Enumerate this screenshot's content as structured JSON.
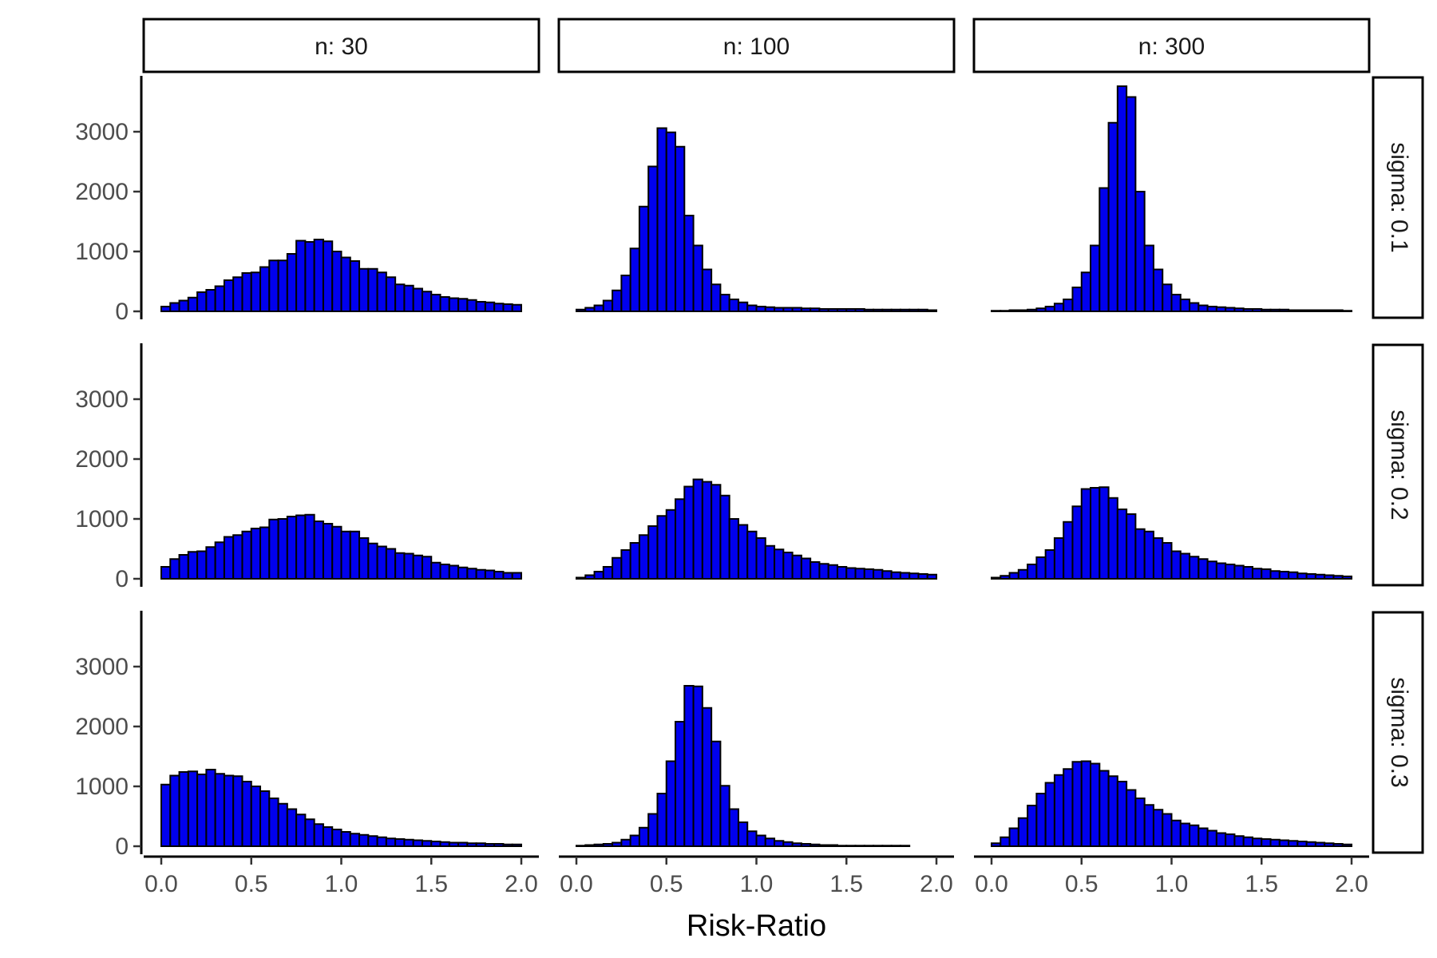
{
  "chart_data": {
    "type": "bar",
    "subtype": "faceted-histogram",
    "xlabel": "Risk-Ratio",
    "ylabel": "",
    "xlim": [
      0,
      2
    ],
    "ylim": [
      0,
      3800
    ],
    "x_ticks": [
      "0.0",
      "0.5",
      "1.0",
      "1.5",
      "2.0"
    ],
    "y_ticks": [
      "0",
      "1000",
      "2000",
      "3000"
    ],
    "bin_width": 0.05,
    "bin_starts": [
      0.0,
      0.05,
      0.1,
      0.15,
      0.2,
      0.25,
      0.3,
      0.35,
      0.4,
      0.45,
      0.5,
      0.55,
      0.6,
      0.65,
      0.7,
      0.75,
      0.8,
      0.85,
      0.9,
      0.95,
      1.0,
      1.05,
      1.1,
      1.15,
      1.2,
      1.25,
      1.3,
      1.35,
      1.4,
      1.45,
      1.5,
      1.55,
      1.6,
      1.65,
      1.7,
      1.75,
      1.8,
      1.85,
      1.9,
      1.95
    ],
    "columns": [
      "n: 30",
      "n: 100",
      "n: 300"
    ],
    "rows": [
      "sigma: 0.1",
      "sigma: 0.2",
      "sigma: 0.3"
    ],
    "colors": {
      "fill": "#0000EE",
      "outline": "#000000"
    },
    "grid": false,
    "legend": "none",
    "panels": [
      {
        "column": "n: 30",
        "row": "sigma: 0.1",
        "counts": [
          80,
          140,
          180,
          230,
          320,
          360,
          420,
          520,
          570,
          640,
          650,
          740,
          850,
          850,
          960,
          1180,
          1160,
          1200,
          1170,
          1000,
          900,
          840,
          710,
          710,
          650,
          570,
          450,
          430,
          380,
          330,
          280,
          240,
          220,
          210,
          190,
          160,
          150,
          130,
          120,
          110
        ]
      },
      {
        "column": "n: 100",
        "row": "sigma: 0.1",
        "counts": [
          30,
          60,
          100,
          180,
          350,
          600,
          1050,
          1750,
          2420,
          3060,
          2990,
          2750,
          1600,
          1100,
          700,
          450,
          280,
          200,
          150,
          100,
          80,
          70,
          60,
          60,
          60,
          50,
          50,
          40,
          40,
          40,
          40,
          40,
          30,
          30,
          30,
          30,
          30,
          30,
          30,
          20
        ]
      },
      {
        "column": "n: 300",
        "row": "sigma: 0.1",
        "counts": [
          10,
          10,
          20,
          20,
          30,
          50,
          80,
          130,
          200,
          400,
          650,
          1100,
          2060,
          3150,
          3760,
          3580,
          2000,
          1100,
          700,
          450,
          280,
          200,
          140,
          100,
          80,
          70,
          60,
          50,
          40,
          40,
          30,
          30,
          30,
          20,
          20,
          20,
          20,
          20,
          20,
          10
        ]
      },
      {
        "column": "n: 30",
        "row": "sigma: 0.2",
        "counts": [
          200,
          330,
          400,
          450,
          460,
          530,
          610,
          700,
          730,
          790,
          840,
          860,
          990,
          1000,
          1040,
          1060,
          1070,
          960,
          920,
          870,
          790,
          790,
          680,
          590,
          540,
          500,
          430,
          420,
          390,
          370,
          270,
          240,
          220,
          190,
          170,
          150,
          140,
          120,
          100,
          100
        ]
      },
      {
        "column": "n: 100",
        "row": "sigma: 0.2",
        "counts": [
          20,
          60,
          120,
          200,
          350,
          480,
          600,
          730,
          880,
          1050,
          1150,
          1330,
          1540,
          1660,
          1620,
          1570,
          1390,
          1000,
          900,
          790,
          680,
          550,
          490,
          440,
          390,
          340,
          280,
          250,
          230,
          200,
          180,
          170,
          160,
          150,
          130,
          110,
          100,
          90,
          80,
          70
        ]
      },
      {
        "column": "n: 300",
        "row": "sigma: 0.2",
        "counts": [
          20,
          50,
          100,
          150,
          240,
          360,
          480,
          680,
          950,
          1210,
          1500,
          1520,
          1530,
          1350,
          1160,
          1080,
          830,
          790,
          680,
          600,
          460,
          420,
          370,
          330,
          290,
          260,
          240,
          220,
          200,
          170,
          160,
          130,
          120,
          110,
          90,
          80,
          70,
          60,
          50,
          40
        ]
      },
      {
        "column": "n: 30",
        "row": "sigma: 0.3",
        "counts": [
          1030,
          1180,
          1240,
          1250,
          1200,
          1280,
          1210,
          1180,
          1170,
          1080,
          1000,
          920,
          800,
          710,
          620,
          530,
          450,
          370,
          320,
          280,
          240,
          210,
          190,
          170,
          150,
          130,
          120,
          110,
          100,
          90,
          80,
          70,
          60,
          60,
          50,
          50,
          40,
          40,
          30,
          30
        ]
      },
      {
        "column": "n: 100",
        "row": "sigma: 0.3",
        "counts": [
          10,
          20,
          30,
          40,
          60,
          110,
          180,
          310,
          540,
          880,
          1420,
          2080,
          2680,
          2670,
          2310,
          1750,
          1010,
          620,
          400,
          250,
          180,
          130,
          90,
          70,
          50,
          40,
          30,
          20,
          20,
          10,
          10,
          10,
          10,
          10,
          10,
          10,
          10,
          0,
          0,
          0
        ]
      },
      {
        "column": "n: 300",
        "row": "sigma: 0.3",
        "counts": [
          50,
          150,
          300,
          470,
          680,
          880,
          1060,
          1190,
          1290,
          1410,
          1420,
          1380,
          1260,
          1170,
          1080,
          940,
          800,
          690,
          610,
          540,
          430,
          380,
          350,
          300,
          260,
          220,
          200,
          170,
          150,
          130,
          120,
          110,
          100,
          90,
          80,
          70,
          60,
          50,
          40,
          30
        ]
      }
    ]
  }
}
